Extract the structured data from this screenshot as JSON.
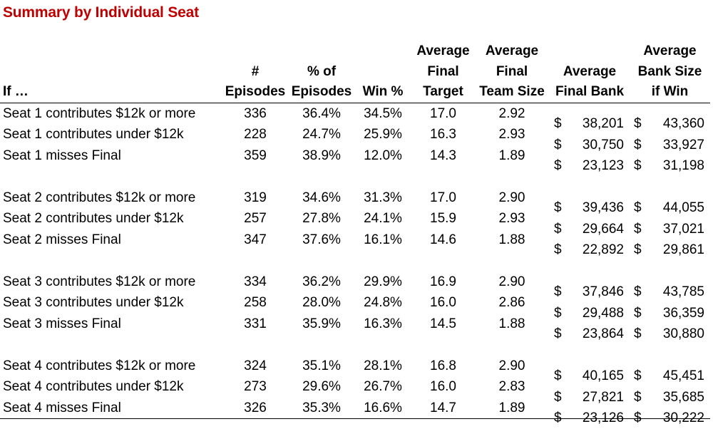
{
  "title": "Summary by Individual Seat",
  "headers": [
    {
      "lines": [
        "If …"
      ]
    },
    {
      "lines": [
        "#",
        "Episodes"
      ]
    },
    {
      "lines": [
        "% of",
        "Episodes"
      ]
    },
    {
      "lines": [
        "Win %"
      ]
    },
    {
      "lines": [
        "Average",
        "Final",
        "Target"
      ]
    },
    {
      "lines": [
        "Average",
        "Final",
        "Team Size"
      ]
    },
    {
      "lines": [
        "Average",
        "Final Bank"
      ]
    },
    {
      "lines": [
        "Average",
        "Bank Size",
        "if Win"
      ]
    }
  ],
  "currency_symbol": "$",
  "groups": [
    {
      "rows": [
        {
          "label": "Seat 1 contributes $12k or more",
          "episodes": "336",
          "pct": "36.4%",
          "win": "34.5%",
          "target": "17.0",
          "team": "2.92",
          "bank": "38,201",
          "bank_win": "43,360"
        },
        {
          "label": "Seat 1 contributes under $12k",
          "episodes": "228",
          "pct": "24.7%",
          "win": "25.9%",
          "target": "16.3",
          "team": "2.93",
          "bank": "30,750",
          "bank_win": "33,927"
        },
        {
          "label": "Seat 1 misses Final",
          "episodes": "359",
          "pct": "38.9%",
          "win": "12.0%",
          "target": "14.3",
          "team": "1.89",
          "bank": "23,123",
          "bank_win": "31,198"
        }
      ]
    },
    {
      "rows": [
        {
          "label": "Seat 2 contributes $12k or more",
          "episodes": "319",
          "pct": "34.6%",
          "win": "31.3%",
          "target": "17.0",
          "team": "2.90",
          "bank": "39,436",
          "bank_win": "44,055"
        },
        {
          "label": "Seat 2 contributes under $12k",
          "episodes": "257",
          "pct": "27.8%",
          "win": "24.1%",
          "target": "15.9",
          "team": "2.93",
          "bank": "29,664",
          "bank_win": "37,021"
        },
        {
          "label": "Seat 2 misses Final",
          "episodes": "347",
          "pct": "37.6%",
          "win": "16.1%",
          "target": "14.6",
          "team": "1.88",
          "bank": "22,892",
          "bank_win": "29,861"
        }
      ]
    },
    {
      "rows": [
        {
          "label": "Seat 3 contributes $12k or more",
          "episodes": "334",
          "pct": "36.2%",
          "win": "29.9%",
          "target": "16.9",
          "team": "2.90",
          "bank": "37,846",
          "bank_win": "43,785"
        },
        {
          "label": "Seat 3 contributes under $12k",
          "episodes": "258",
          "pct": "28.0%",
          "win": "24.8%",
          "target": "16.0",
          "team": "2.86",
          "bank": "29,488",
          "bank_win": "36,359"
        },
        {
          "label": "Seat 3 misses Final",
          "episodes": "331",
          "pct": "35.9%",
          "win": "16.3%",
          "target": "14.5",
          "team": "1.88",
          "bank": "23,864",
          "bank_win": "30,880"
        }
      ]
    },
    {
      "rows": [
        {
          "label": "Seat 4 contributes $12k or more",
          "episodes": "324",
          "pct": "35.1%",
          "win": "28.1%",
          "target": "16.8",
          "team": "2.90",
          "bank": "40,165",
          "bank_win": "45,451"
        },
        {
          "label": "Seat 4 contributes under $12k",
          "episodes": "273",
          "pct": "29.6%",
          "win": "26.7%",
          "target": "16.0",
          "team": "2.83",
          "bank": "27,821",
          "bank_win": "35,685"
        },
        {
          "label": "Seat 4 misses Final",
          "episodes": "326",
          "pct": "35.3%",
          "win": "16.6%",
          "target": "14.7",
          "team": "1.89",
          "bank": "23,126",
          "bank_win": "30,222"
        }
      ]
    }
  ]
}
